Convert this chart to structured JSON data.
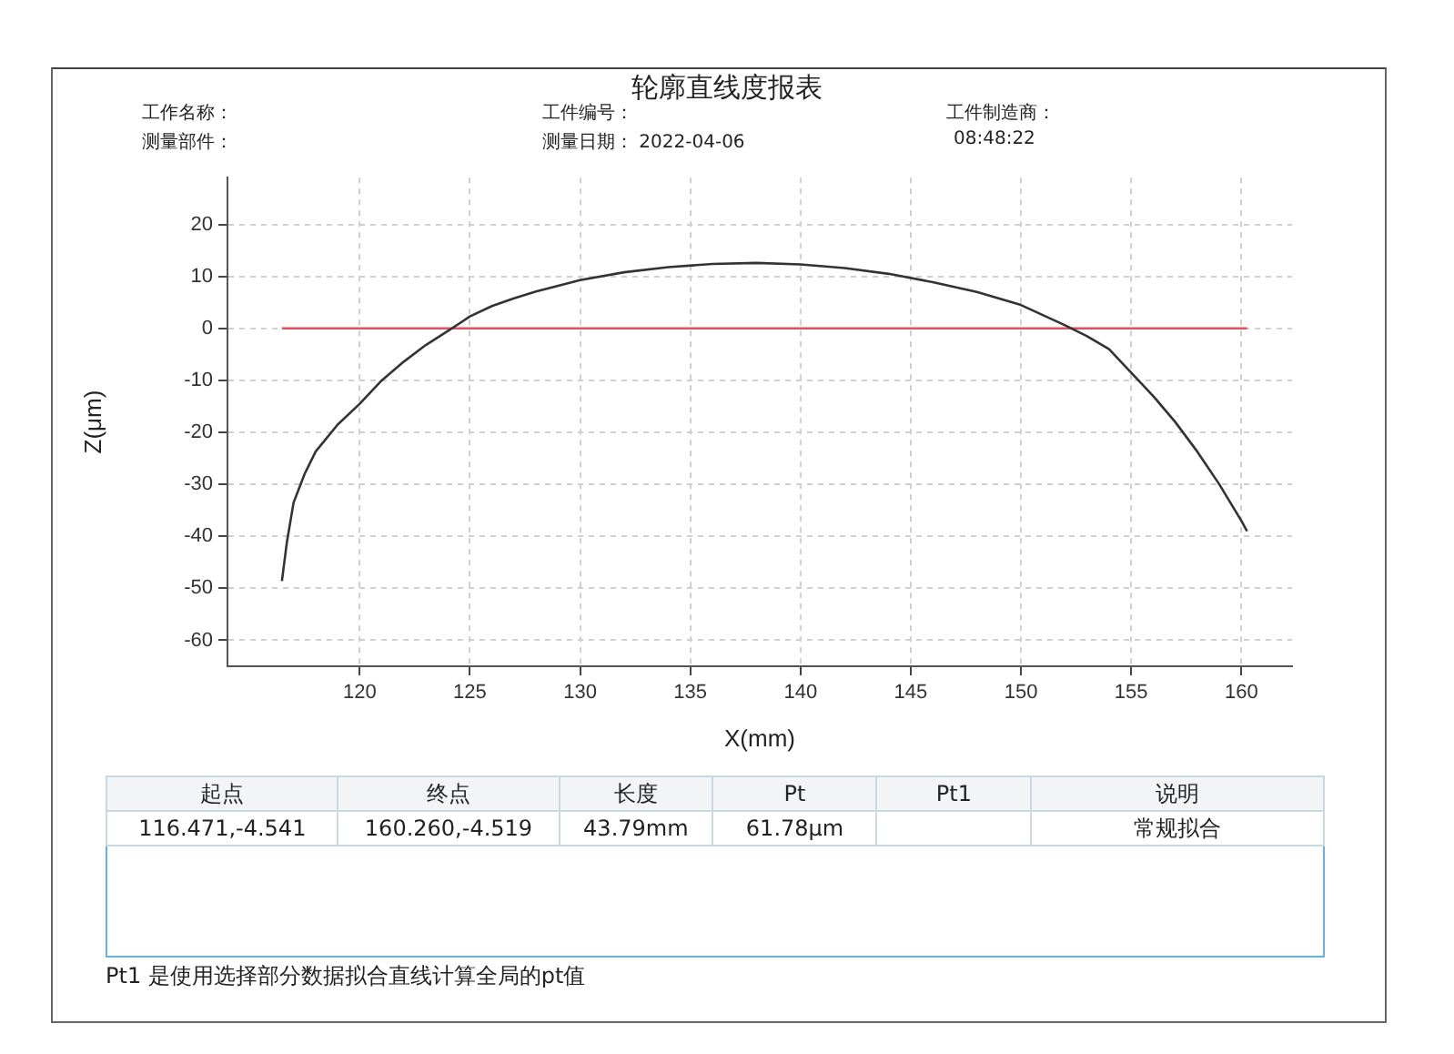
{
  "chart_data": {
    "type": "line",
    "title": "轮廓直线度报表",
    "xlabel": "X(mm)",
    "ylabel": "Z(μm)",
    "annotations": [
      "工作名称：",
      "工件编号：",
      "工件制造商：",
      "测量部件：",
      "测量日期： 2022-04-06",
      "08:48:22",
      "起点",
      "终点",
      "长度",
      "Pt",
      "Pt1",
      "说明",
      "116.471,-4.541",
      "160.260,-4.519",
      "43.79mm",
      "61.78μm",
      "常规拟合",
      "Pt1 是使用选择部分数据拟合直线计算全局的pt值"
    ],
    "series": [
      {
        "color": "#333333",
        "x": [
          116.47,
          116.7,
          117,
          117.5,
          118,
          119,
          120,
          121,
          122,
          123,
          124,
          125,
          126,
          127,
          128,
          130,
          132,
          134,
          136,
          138,
          140,
          142,
          144,
          146,
          148,
          150,
          152,
          153,
          154,
          155,
          156,
          157,
          158,
          159,
          160,
          160.26
        ],
        "values": [
          -48.6,
          -41,
          -33.5,
          -28,
          -23.7,
          -18.5,
          -14.5,
          -10,
          -6.4,
          -3.2,
          -0.5,
          2.3,
          4.3,
          5.8,
          7.1,
          9.3,
          10.8,
          11.8,
          12.4,
          12.6,
          12.3,
          11.6,
          10.5,
          8.9,
          7,
          4.5,
          0.6,
          -1.5,
          -4,
          -8.5,
          -13,
          -18,
          -23.7,
          -30,
          -37,
          -39
        ]
      },
      {
        "color": "#e05060",
        "x": [
          116.471,
          160.26
        ],
        "values": [
          0,
          0
        ]
      }
    ],
    "xlim": [
      114,
      162.3
    ],
    "ylim": [
      -65,
      29
    ],
    "xticks": [
      120,
      125,
      130,
      135,
      140,
      145,
      150,
      155,
      160
    ],
    "yticks": [
      -60,
      -50,
      -40,
      -30,
      -20,
      -10,
      0,
      10,
      20
    ],
    "grid": true,
    "marker": "none",
    "line_style": "solid"
  }
}
